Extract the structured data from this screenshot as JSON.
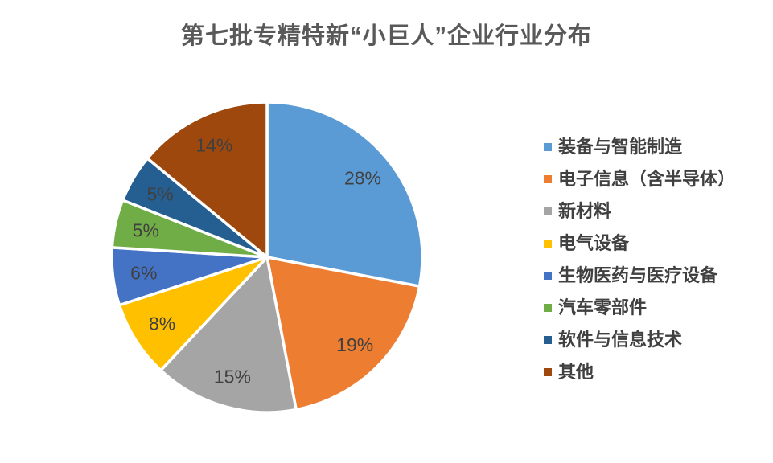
{
  "page": {
    "background_color": "#FFFFFF"
  },
  "chart_data": {
    "type": "pie",
    "title": "第七批专精特新“小巨人”企业行业分布",
    "title_color": "#595959",
    "label_color": "#404040",
    "slice_border_color": "#FFFFFF",
    "legend_position": "right",
    "direction": "clockwise",
    "start_angle_deg": 0,
    "label_radius_ratio": 0.8,
    "series": [
      {
        "label": "装备与智能制造",
        "value": 28,
        "percent_label": "28%",
        "color": "#5B9BD5"
      },
      {
        "label": "电子信息（含半导体）",
        "value": 19,
        "percent_label": "19%",
        "color": "#ED7D31"
      },
      {
        "label": "新材料",
        "value": 15,
        "percent_label": "15%",
        "color": "#A5A5A5"
      },
      {
        "label": "电气设备",
        "value": 8,
        "percent_label": "8%",
        "color": "#FFC000"
      },
      {
        "label": "生物医药与医疗设备",
        "value": 6,
        "percent_label": "6%",
        "color": "#4472C4"
      },
      {
        "label": "汽车零部件",
        "value": 5,
        "percent_label": "5%",
        "color": "#70AD47"
      },
      {
        "label": "软件与信息技术",
        "value": 5,
        "percent_label": "5%",
        "color": "#255E91"
      },
      {
        "label": "其他",
        "value": 14,
        "percent_label": "14%",
        "color": "#9E480E"
      }
    ]
  }
}
